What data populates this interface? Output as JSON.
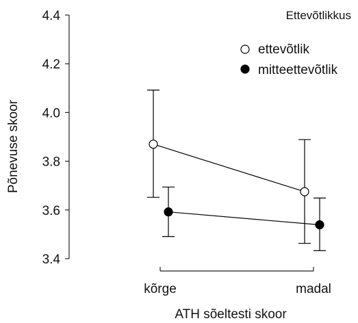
{
  "chart_data": {
    "type": "line",
    "xlabel": "ATH sõeltesti skoor",
    "ylabel": "Põnevuse skoor",
    "categories": [
      "kõrge",
      "madal"
    ],
    "ylim": [
      3.4,
      4.4
    ],
    "yticks": [
      3.4,
      3.6,
      3.8,
      4.0,
      4.2,
      4.4
    ],
    "ytick_labels": [
      "3.4",
      "3.6",
      "3.8",
      "4.0",
      "4.2",
      "4.4"
    ],
    "grid": false,
    "legend": {
      "title": "Ettevõtlikkus",
      "placement": "top-right"
    },
    "series": [
      {
        "name": "ettevõtlik",
        "marker": "open-circle",
        "color": "#000000",
        "values": [
          3.87,
          3.675
        ],
        "error_low": [
          3.652,
          3.463
        ],
        "error_high": [
          4.092,
          3.889
        ]
      },
      {
        "name": "mitteettevõtlik",
        "marker": "filled-circle",
        "color": "#000000",
        "values": [
          3.592,
          3.539
        ],
        "error_low": [
          3.491,
          3.433
        ],
        "error_high": [
          3.694,
          3.649
        ]
      }
    ]
  }
}
